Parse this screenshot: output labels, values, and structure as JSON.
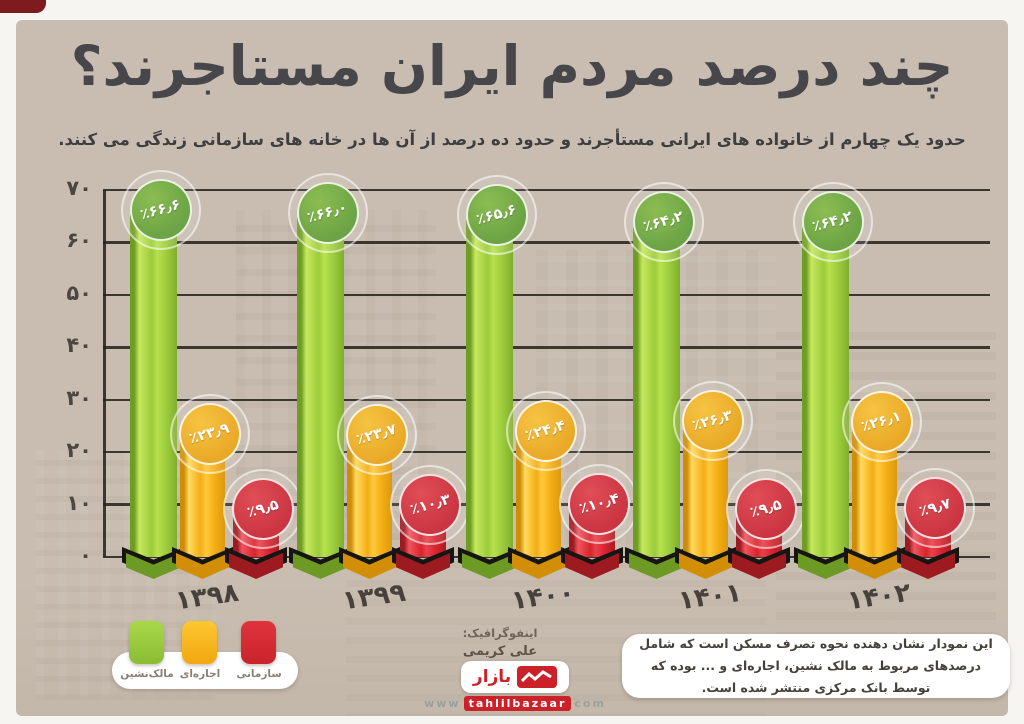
{
  "title": "چند درصد مردم ایران مستاجرند؟",
  "subtitle": "حدود یک چهارم از خانواده های ایرانی مستأجرند و حدود ده درصد از آن ها در خانه های سازمانی زندگی می کنند.",
  "chart_data": {
    "type": "bar",
    "title": "چند درصد مردم ایران مستاجرند؟",
    "categories": [
      "۱۳۹۸",
      "۱۳۹۹",
      "۱۴۰۰",
      "۱۴۰۱",
      "۱۴۰۲"
    ],
    "series": [
      {
        "key": "owner",
        "name": "مالک‌نشین",
        "color": "#8fc33c",
        "values": [
          66.6,
          66.0,
          65.6,
          64.2,
          64.2
        ],
        "labels": [
          "٪۶۶٫۶",
          "٪۶۶٫۰",
          "٪۶۵٫۶",
          "٪۶۴٫۲",
          "٪۶۴٫۲"
        ]
      },
      {
        "key": "rental",
        "name": "اجاره‌ای",
        "color": "#f4ad14",
        "values": [
          23.9,
          23.7,
          24.4,
          26.3,
          26.1
        ],
        "labels": [
          "٪۲۳٫۹",
          "٪۲۳٫۷",
          "٪۲۴٫۴",
          "٪۲۶٫۳",
          "٪۲۶٫۱"
        ]
      },
      {
        "key": "organizational",
        "name": "سازمانی",
        "color": "#d8232e",
        "values": [
          9.5,
          10.3,
          10.4,
          9.5,
          9.7
        ],
        "labels": [
          "٪۹٫۵",
          "٪۱۰٫۳",
          "٪۱۰٫۴",
          "٪۹٫۵",
          "٪۹٫۷"
        ]
      }
    ],
    "ylim": [
      0,
      70
    ],
    "yticks": [
      {
        "value": 70,
        "label": "۷۰"
      },
      {
        "value": 60,
        "label": "۶۰"
      },
      {
        "value": 50,
        "label": "۵۰"
      },
      {
        "value": 40,
        "label": "۴۰"
      },
      {
        "value": 30,
        "label": "۳۰"
      },
      {
        "value": 20,
        "label": "۲۰"
      },
      {
        "value": 10,
        "label": "۱۰"
      },
      {
        "value": 0,
        "label": "۰"
      }
    ],
    "grid": true,
    "legend_position": "bottom-left"
  },
  "legend": {
    "items": [
      {
        "label": "مالک‌نشین",
        "color": "#8fc33c"
      },
      {
        "label": "اجاره‌ای",
        "color": "#f4ad14"
      },
      {
        "label": "سازمانی",
        "color": "#d8232e"
      }
    ]
  },
  "note": "این نمودار نشان دهنده نحوه تصرف مسکن است که شامل درصدهای مربوط به مالک نشین، اجاره‌ای و ... بوده که توسط بانک مرکزی منتشر شده است.",
  "credit": {
    "label": "اینفوگرافیک:",
    "name": "علی کریمی"
  },
  "logo": {
    "brand": "بازار",
    "www": "www",
    "domain": "tahlilbazaar",
    "tld": "com"
  }
}
